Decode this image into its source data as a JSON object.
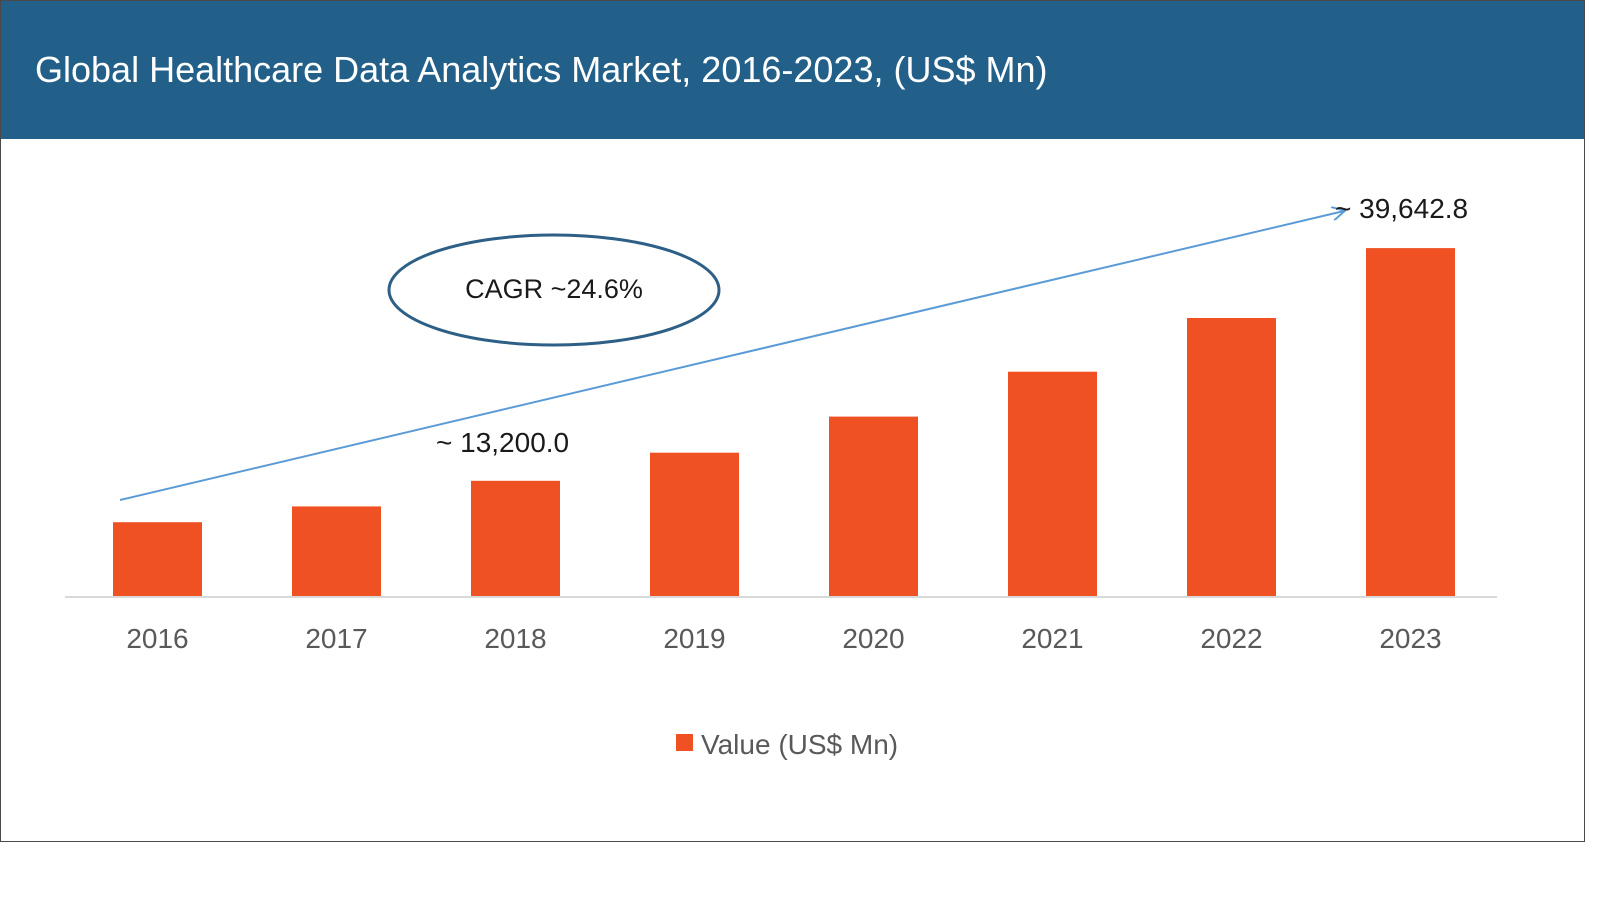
{
  "header": {
    "title": "Global Healthcare Data Analytics Market, 2016-2023, (US$ Mn)"
  },
  "colors": {
    "header_bg": "#236089",
    "bar": "#EF5123",
    "arrow": "#5B9BD5",
    "ellipse": "#2E5F86",
    "axis": "#D9D9D9"
  },
  "chart_data": {
    "type": "bar",
    "title": "Global Healthcare Data Analytics Market, 2016-2023, (US$ Mn)",
    "categories": [
      "2016",
      "2017",
      "2018",
      "2019",
      "2020",
      "2021",
      "2022",
      "2023"
    ],
    "series": [
      {
        "name": "Value (US$ Mn)",
        "values": [
          8500,
          10300,
          13200,
          16400,
          20500,
          25600,
          31700,
          39642.8
        ]
      }
    ],
    "ylim": [
      0,
      40000
    ],
    "grid": false,
    "legend_position": "bottom",
    "annotations": {
      "cagr": "CAGR ~24.6%",
      "label_2018": "~ 13,200.0",
      "label_2023": "~ 39,642.8"
    }
  }
}
